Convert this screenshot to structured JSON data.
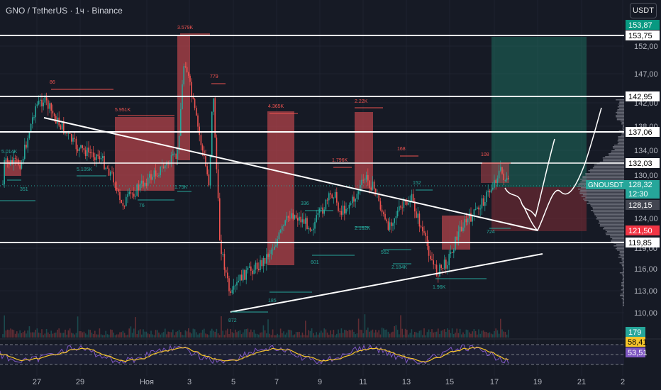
{
  "header": {
    "symbol": "GNO / TetherUS",
    "interval": "1ч",
    "exchange": "Binance",
    "title": "GNO / TetherUS · 1ч · Binance",
    "currency_button": "USDT"
  },
  "price_axis": {
    "ticks": [
      "152,00",
      "147,00",
      "142,00",
      "138,00",
      "134,00",
      "130,00",
      "124,00",
      "119,00",
      "116,00",
      "113,00",
      "110,00"
    ],
    "labels": [
      {
        "text": "153,87",
        "color": "#089981"
      },
      {
        "text": "153,75",
        "color": "#000000"
      },
      {
        "text": "142,95",
        "color": "#000000"
      },
      {
        "text": "137,06",
        "color": "#000000"
      },
      {
        "text": "132,03",
        "color": "#000000"
      },
      {
        "text": "121,50",
        "color": "#f23645"
      },
      {
        "text": "119,85",
        "color": "#000000"
      },
      {
        "text": "128,15",
        "color": "#434651"
      }
    ],
    "current": {
      "symbol": "GNOUSDT",
      "price": "128,32",
      "countdown": "12:30"
    }
  },
  "time_axis": [
    "27",
    "29",
    "Ноя",
    "3",
    "5",
    "7",
    "9",
    "11",
    "13",
    "15",
    "17",
    "19",
    "21",
    "2"
  ],
  "annotations": [
    "86",
    "5.951K",
    "3.579K",
    "779",
    "4.365K",
    "2.22K",
    "1.796K",
    "168",
    "108",
    "5.014K",
    "5.105K",
    "76",
    "1.79K",
    "336",
    "2.162K",
    "152",
    "351",
    "601",
    "185",
    "872",
    "552",
    "2.184K",
    "1.96K",
    "724"
  ],
  "volume_label": "179",
  "rsi": {
    "value1": "58,41",
    "value2": "53,51"
  },
  "colors": {
    "background": "#161a25",
    "up": "#26a69a",
    "down": "#ef5350",
    "zone_red": "#b2434a",
    "zone_green": "#1d6b5c",
    "rsi_line": "#7e57c2",
    "rsi_signal": "#f7c52b",
    "current_price": "#26a69a",
    "white": "#ffffff"
  }
}
